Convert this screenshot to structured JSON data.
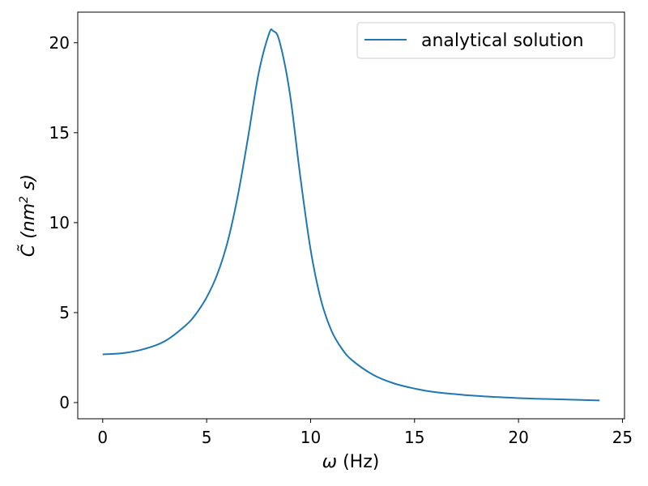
{
  "chart_data": {
    "type": "line",
    "xlabel_symbol": "ω",
    "xlabel_unit": "(Hz)",
    "ylabel_main": "C̃ (nm",
    "ylabel_exp": "2",
    "ylabel_tail": " s)",
    "xlim": [
      -1.2,
      25.1
    ],
    "ylim": [
      -0.9,
      21.7
    ],
    "x_ticks": [
      0,
      5,
      10,
      15,
      20,
      25
    ],
    "y_ticks": [
      0,
      5,
      10,
      15,
      20
    ],
    "x_tick_labels": [
      "0",
      "5",
      "10",
      "15",
      "20",
      "25"
    ],
    "y_tick_labels": [
      "0",
      "5",
      "10",
      "15",
      "20"
    ],
    "grid": false,
    "legend_position": "top-right",
    "series": [
      {
        "name": "analytical solution",
        "color": "#1f77b4",
        "x": [
          0,
          1,
          2,
          3,
          4,
          4.5,
          5,
          5.5,
          6,
          6.5,
          7,
          7.5,
          8,
          8.2,
          8.5,
          9,
          9.5,
          10,
          10.5,
          11,
          11.5,
          12,
          13,
          14,
          15,
          16,
          18,
          20,
          22,
          23.9
        ],
        "y": [
          2.68,
          2.75,
          2.98,
          3.42,
          4.3,
          4.95,
          5.85,
          7.1,
          8.9,
          11.5,
          14.8,
          18.3,
          20.5,
          20.65,
          20.1,
          17.2,
          12.6,
          8.5,
          5.7,
          4.0,
          3.0,
          2.35,
          1.55,
          1.07,
          0.78,
          0.58,
          0.37,
          0.25,
          0.18,
          0.12
        ]
      }
    ]
  }
}
